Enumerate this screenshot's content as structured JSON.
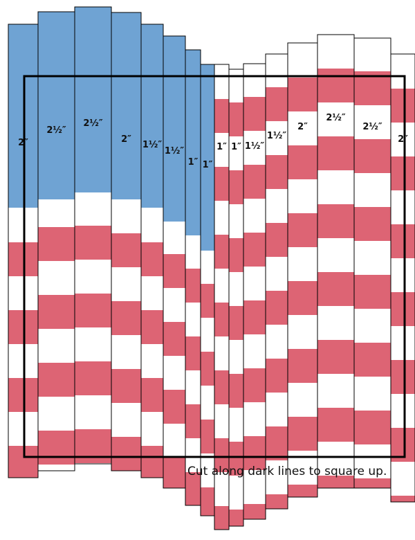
{
  "strips": [
    {
      "label": "2″"
    },
    {
      "label": "2½″"
    },
    {
      "label": "2½″"
    },
    {
      "label": "2″"
    },
    {
      "label": "1½″"
    },
    {
      "label": "1½″"
    },
    {
      "label": "1″"
    },
    {
      "label": "1″"
    },
    {
      "label": "1″"
    },
    {
      "label": "1″"
    },
    {
      "label": "1½″"
    },
    {
      "label": "1½″"
    },
    {
      "label": "2″"
    },
    {
      "label": "2½″"
    },
    {
      "label": "2½″"
    },
    {
      "label": "2″"
    }
  ],
  "caption": "Cut along dark lines to square up."
}
